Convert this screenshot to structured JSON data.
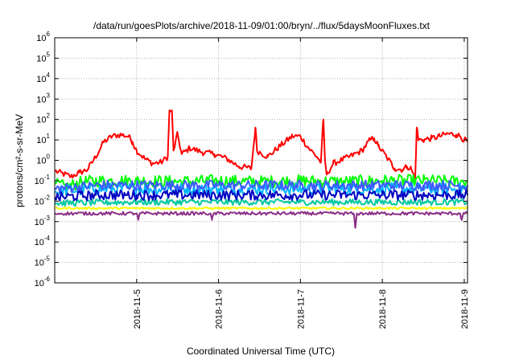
{
  "chart_data": {
    "type": "line",
    "title": "/data/run/goesPlots/archive/2018-11-09/01:00/bryn/../flux/5daysMoonFluxes.txt",
    "xlabel": "Coordinated Universal Time (UTC)",
    "ylabel": "protons/cm²-s-sr-MeV",
    "yscale": "log",
    "ylim": [
      1e-06,
      1000000.0
    ],
    "xlim": [
      "2018-11-04 00:00",
      "2018-11-09 01:00"
    ],
    "xticks": [
      "2018-11-5",
      "2018-11-6",
      "2018-11-7",
      "2018-11-8",
      "2018-11-9"
    ],
    "yticks": [
      {
        "base": "10",
        "exp": "-6"
      },
      {
        "base": "10",
        "exp": "-5"
      },
      {
        "base": "10",
        "exp": "-4"
      },
      {
        "base": "10",
        "exp": "-3"
      },
      {
        "base": "10",
        "exp": "-2"
      },
      {
        "base": "10",
        "exp": "-1"
      },
      {
        "base": "10",
        "exp": "0"
      },
      {
        "base": "10",
        "exp": "1"
      },
      {
        "base": "10",
        "exp": "2"
      },
      {
        "base": "10",
        "exp": "3"
      },
      {
        "base": "10",
        "exp": "4"
      },
      {
        "base": "10",
        "exp": "5"
      },
      {
        "base": "10",
        "exp": "6"
      }
    ],
    "grid": true,
    "x_unit": "days since 2018-11-04 00:00",
    "series": [
      {
        "color": "#ff0000",
        "noise": 0.15,
        "values": [
          [
            0.0,
            0.3
          ],
          [
            0.1,
            0.22
          ],
          [
            0.2,
            0.16
          ],
          [
            0.3,
            0.25
          ],
          [
            0.4,
            0.35
          ],
          [
            0.5,
            1.5
          ],
          [
            0.6,
            8
          ],
          [
            0.7,
            15
          ],
          [
            0.8,
            18
          ],
          [
            0.9,
            15
          ],
          [
            0.95,
            8
          ],
          [
            1.0,
            3
          ],
          [
            1.1,
            1.2
          ],
          [
            1.2,
            0.7
          ],
          [
            1.3,
            0.8
          ],
          [
            1.38,
            1.5
          ],
          [
            1.4,
            250
          ],
          [
            1.43,
            280
          ],
          [
            1.45,
            3
          ],
          [
            1.5,
            20
          ],
          [
            1.55,
            2
          ],
          [
            1.65,
            4
          ],
          [
            1.8,
            2.5
          ],
          [
            1.95,
            2
          ],
          [
            2.1,
            1.2
          ],
          [
            2.25,
            0.5
          ],
          [
            2.4,
            0.4
          ],
          [
            2.45,
            40
          ],
          [
            2.47,
            3
          ],
          [
            2.6,
            1.5
          ],
          [
            2.75,
            5
          ],
          [
            2.9,
            15
          ],
          [
            3.0,
            15
          ],
          [
            3.1,
            4
          ],
          [
            3.2,
            1.5
          ],
          [
            3.25,
            0.8
          ],
          [
            3.28,
            100
          ],
          [
            3.3,
            1
          ],
          [
            3.32,
            0.2
          ],
          [
            3.4,
            0.7
          ],
          [
            3.6,
            1.5
          ],
          [
            3.75,
            3
          ],
          [
            3.85,
            10
          ],
          [
            3.9,
            12
          ],
          [
            3.95,
            5
          ],
          [
            4.05,
            1.5
          ],
          [
            4.15,
            0.4
          ],
          [
            4.25,
            0.35
          ],
          [
            4.3,
            0.5
          ],
          [
            4.35,
            0.4
          ],
          [
            4.4,
            0.12
          ],
          [
            4.42,
            40
          ],
          [
            4.44,
            10
          ],
          [
            4.5,
            10
          ],
          [
            4.6,
            12
          ],
          [
            4.7,
            15
          ],
          [
            4.8,
            20
          ],
          [
            4.9,
            18
          ],
          [
            4.95,
            15
          ],
          [
            5.0,
            10
          ],
          [
            5.04,
            8
          ]
        ]
      },
      {
        "color": "#00ff00",
        "noise": 0.3,
        "values": [
          [
            0.0,
            0.07
          ],
          [
            0.15,
            0.05
          ],
          [
            0.3,
            0.08
          ],
          [
            0.5,
            0.1
          ],
          [
            1.0,
            0.1
          ],
          [
            1.5,
            0.09
          ],
          [
            2.0,
            0.1
          ],
          [
            2.5,
            0.09
          ],
          [
            3.0,
            0.1
          ],
          [
            3.5,
            0.09
          ],
          [
            4.0,
            0.1
          ],
          [
            4.5,
            0.1
          ],
          [
            5.04,
            0.09
          ]
        ]
      },
      {
        "color": "#00b4ff",
        "noise": 0.3,
        "values": [
          [
            0.0,
            0.03
          ],
          [
            0.5,
            0.04
          ],
          [
            1.0,
            0.04
          ],
          [
            1.5,
            0.04
          ],
          [
            2.0,
            0.04
          ],
          [
            2.5,
            0.04
          ],
          [
            3.0,
            0.04
          ],
          [
            3.5,
            0.04
          ],
          [
            4.0,
            0.04
          ],
          [
            4.5,
            0.04
          ],
          [
            5.04,
            0.04
          ]
        ]
      },
      {
        "color": "#3c5aff",
        "noise": 0.25,
        "values": [
          [
            0.0,
            0.04
          ],
          [
            0.5,
            0.06
          ],
          [
            1.0,
            0.06
          ],
          [
            1.5,
            0.06
          ],
          [
            2.0,
            0.06
          ],
          [
            2.5,
            0.06
          ],
          [
            3.0,
            0.06
          ],
          [
            3.5,
            0.06
          ],
          [
            4.0,
            0.06
          ],
          [
            4.5,
            0.06
          ],
          [
            5.04,
            0.06
          ]
        ]
      },
      {
        "color": "#00c8a0",
        "noise": 0.15,
        "values": [
          [
            0.0,
            0.008
          ],
          [
            1.0,
            0.009
          ],
          [
            2.0,
            0.009
          ],
          [
            3.0,
            0.009
          ],
          [
            4.0,
            0.009
          ],
          [
            5.04,
            0.009
          ]
        ]
      },
      {
        "color": "#0000c0",
        "noise": 0.25,
        "values": [
          [
            0.0,
            0.015
          ],
          [
            0.5,
            0.02
          ],
          [
            1.0,
            0.02
          ],
          [
            1.5,
            0.02
          ],
          [
            2.0,
            0.02
          ],
          [
            2.5,
            0.02
          ],
          [
            3.0,
            0.02
          ],
          [
            3.5,
            0.02
          ],
          [
            4.0,
            0.02
          ],
          [
            4.5,
            0.02
          ],
          [
            5.04,
            0.02
          ]
        ]
      },
      {
        "color": "#ffff00",
        "noise": 0.05,
        "values": [
          [
            0.0,
            0.0045
          ],
          [
            1.0,
            0.0045
          ],
          [
            2.0,
            0.0045
          ],
          [
            3.0,
            0.0045
          ],
          [
            4.0,
            0.0045
          ],
          [
            5.04,
            0.0045
          ]
        ]
      },
      {
        "color": "#8b2e86",
        "noise": 0.08,
        "values": [
          [
            0.0,
            0.0025
          ],
          [
            1.0,
            0.0025
          ],
          [
            1.02,
            0.0012
          ],
          [
            1.04,
            0.0025
          ],
          [
            1.9,
            0.0025
          ],
          [
            1.92,
            0.0012
          ],
          [
            1.94,
            0.0025
          ],
          [
            3.65,
            0.0025
          ],
          [
            3.67,
            0.0005
          ],
          [
            3.69,
            0.0025
          ],
          [
            4.95,
            0.0025
          ],
          [
            4.97,
            0.0012
          ],
          [
            4.99,
            0.0025
          ],
          [
            5.04,
            0.0025
          ]
        ]
      }
    ]
  }
}
